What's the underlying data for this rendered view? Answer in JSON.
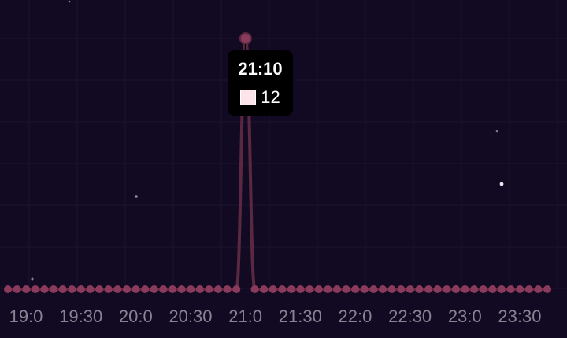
{
  "chart_data": {
    "type": "line",
    "x": [
      "19:00",
      "19:05",
      "19:10",
      "19:15",
      "19:20",
      "19:25",
      "19:30",
      "19:35",
      "19:40",
      "19:45",
      "19:50",
      "19:55",
      "20:00",
      "20:05",
      "20:10",
      "20:15",
      "20:20",
      "20:25",
      "20:30",
      "20:35",
      "20:40",
      "20:45",
      "20:50",
      "20:55",
      "21:00",
      "21:05",
      "21:10",
      "21:15",
      "21:20",
      "21:25",
      "21:30",
      "21:35",
      "21:40",
      "21:45",
      "21:50",
      "21:55",
      "22:00",
      "22:05",
      "22:10",
      "22:15",
      "22:20",
      "22:25",
      "22:30",
      "22:35",
      "22:40",
      "22:45",
      "22:50",
      "22:55",
      "23:00",
      "23:05",
      "23:10",
      "23:15",
      "23:20",
      "23:25",
      "23:30",
      "23:35",
      "23:40",
      "23:45",
      "23:50",
      "23:55"
    ],
    "x_tick_labels": [
      "19:0",
      "19:30",
      "20:0",
      "20:30",
      "21:0",
      "21:30",
      "22:0",
      "22:30",
      "23:0",
      "23:30"
    ],
    "series": [
      {
        "values": [
          0,
          0,
          0,
          0,
          0,
          0,
          0,
          0,
          0,
          0,
          0,
          0,
          0,
          0,
          0,
          0,
          0,
          0,
          0,
          0,
          0,
          0,
          0,
          0,
          0,
          0,
          12,
          0,
          0,
          0,
          0,
          0,
          0,
          0,
          0,
          0,
          0,
          0,
          0,
          0,
          0,
          0,
          0,
          0,
          0,
          0,
          0,
          0,
          0,
          0,
          0,
          0,
          0,
          0,
          0,
          0,
          0,
          0,
          0,
          0
        ],
        "color": "#5a2840",
        "point_color": "#8a3a5a"
      }
    ],
    "ylim": [
      0,
      12
    ],
    "grid": true,
    "tooltip": {
      "title": "21:10",
      "value": "12",
      "swatch_color": "#fde3ea"
    }
  }
}
